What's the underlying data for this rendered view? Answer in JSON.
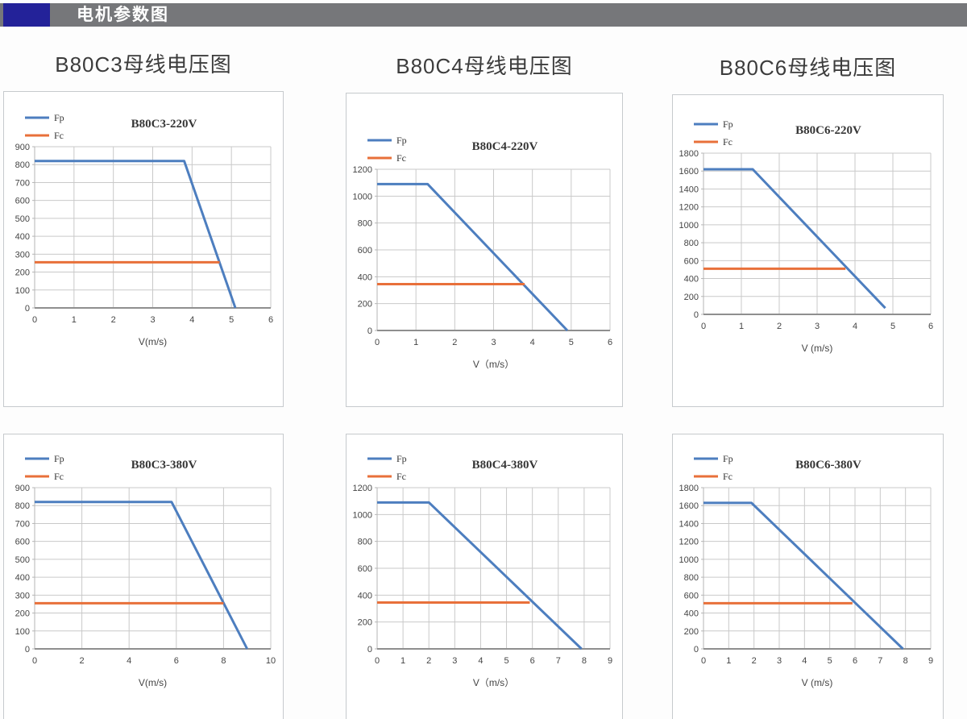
{
  "header": {
    "title": "电机参数图"
  },
  "column_headings": [
    "B80C3母线电压图",
    "B80C4母线电压图",
    "B80C6母线电压图"
  ],
  "colors": {
    "fp": "#4d7ebf",
    "fc": "#e8703a",
    "grid": "#c9c9c9",
    "axis_bottom": "#8f8f8f",
    "axis_left": "#b5b5b5",
    "header_bar": "#76777a",
    "header_accent": "#232299",
    "tick_text": "#454545",
    "title_text": "#363636"
  },
  "chart_data": [
    {
      "type": "line",
      "title": "B80C3-220V",
      "xlabel": "V(m/s)",
      "x": {
        "min": 0,
        "max": 6,
        "step": 1
      },
      "y": {
        "min": 0,
        "max": 900,
        "step": 100
      },
      "grid": true,
      "legend_position": "top-left",
      "series": [
        {
          "name": "Fp",
          "color": "fp",
          "points": [
            [
              0,
              820
            ],
            [
              3.8,
              820
            ],
            [
              5.1,
              0
            ]
          ]
        },
        {
          "name": "Fc",
          "color": "fc",
          "points": [
            [
              0,
              255
            ],
            [
              4.7,
              255
            ]
          ]
        }
      ],
      "layout": {
        "top_offset": 4
      }
    },
    {
      "type": "line",
      "title": "B80C4-220V",
      "xlabel": "V（m/s）",
      "x": {
        "min": 0,
        "max": 6,
        "step": 1
      },
      "y": {
        "min": 0,
        "max": 1200,
        "step": 200
      },
      "grid": true,
      "legend_position": "top-left",
      "series": [
        {
          "name": "Fp",
          "color": "fp",
          "points": [
            [
              0,
              1090
            ],
            [
              1.3,
              1090
            ],
            [
              4.9,
              0
            ]
          ]
        },
        {
          "name": "Fc",
          "color": "fc",
          "points": [
            [
              0,
              345
            ],
            [
              3.8,
              345
            ]
          ]
        }
      ],
      "layout": {
        "top_offset": 30
      }
    },
    {
      "type": "line",
      "title": "B80C6-220V",
      "xlabel": "V (m/s)",
      "x": {
        "min": 0,
        "max": 6,
        "step": 1
      },
      "y": {
        "min": 0,
        "max": 1800,
        "step": 200
      },
      "grid": true,
      "legend_position": "top-left",
      "series": [
        {
          "name": "Fp",
          "color": "fp",
          "points": [
            [
              0,
              1620
            ],
            [
              1.3,
              1620
            ],
            [
              4.8,
              70
            ]
          ]
        },
        {
          "name": "Fc",
          "color": "fc",
          "points": [
            [
              0,
              510
            ],
            [
              3.75,
              510
            ]
          ]
        }
      ],
      "layout": {
        "top_offset": 8
      }
    },
    {
      "type": "line",
      "title": "B80C3-380V",
      "xlabel": "V(m/s)",
      "x": {
        "min": 0,
        "max": 10,
        "step": 2
      },
      "y": {
        "min": 0,
        "max": 900,
        "step": 100
      },
      "grid": true,
      "legend_position": "top-left",
      "series": [
        {
          "name": "Fp",
          "color": "fp",
          "points": [
            [
              0,
              820
            ],
            [
              5.8,
              820
            ],
            [
              9,
              0
            ]
          ]
        },
        {
          "name": "Fc",
          "color": "fc",
          "points": [
            [
              0,
              255
            ],
            [
              8,
              255
            ]
          ]
        }
      ],
      "layout": {
        "top_offset": 2
      }
    },
    {
      "type": "line",
      "title": "B80C4-380V",
      "xlabel": "V（m/s）",
      "x": {
        "min": 0,
        "max": 9,
        "step": 1
      },
      "y": {
        "min": 0,
        "max": 1200,
        "step": 200
      },
      "grid": true,
      "legend_position": "top-left",
      "series": [
        {
          "name": "Fp",
          "color": "fp",
          "points": [
            [
              0,
              1090
            ],
            [
              2,
              1090
            ],
            [
              7.9,
              0
            ]
          ]
        },
        {
          "name": "Fc",
          "color": "fc",
          "points": [
            [
              0,
              345
            ],
            [
              5.9,
              345
            ]
          ]
        }
      ],
      "layout": {
        "top_offset": 2
      }
    },
    {
      "type": "line",
      "title": "B80C6-380V",
      "xlabel": "V (m/s)",
      "x": {
        "min": 0,
        "max": 9,
        "step": 1
      },
      "y": {
        "min": 0,
        "max": 1800,
        "step": 200
      },
      "grid": true,
      "legend_position": "top-left",
      "series": [
        {
          "name": "Fp",
          "color": "fp",
          "points": [
            [
              0,
              1630
            ],
            [
              1.9,
              1630
            ],
            [
              7.9,
              0
            ]
          ]
        },
        {
          "name": "Fc",
          "color": "fc",
          "points": [
            [
              0,
              510
            ],
            [
              5.9,
              510
            ]
          ]
        }
      ],
      "layout": {
        "top_offset": 2
      }
    }
  ]
}
